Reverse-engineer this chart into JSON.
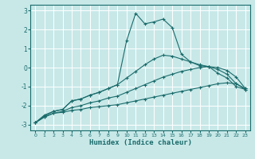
{
  "xlabel": "Humidex (Indice chaleur)",
  "bg_color": "#c8e8e8",
  "grid_color": "#b0d8d8",
  "line_color": "#1a6b6b",
  "xlim": [
    -0.5,
    23.5
  ],
  "ylim": [
    -3.3,
    3.3
  ],
  "yticks": [
    -3,
    -2,
    -1,
    0,
    1,
    2,
    3
  ],
  "xticks": [
    0,
    1,
    2,
    3,
    4,
    5,
    6,
    7,
    8,
    9,
    10,
    11,
    12,
    13,
    14,
    15,
    16,
    17,
    18,
    19,
    20,
    21,
    22,
    23
  ],
  "series": [
    {
      "x": [
        0,
        1,
        2,
        3,
        4,
        5,
        6,
        7,
        8,
        9,
        10,
        11,
        12,
        13,
        14,
        15,
        16,
        17,
        18,
        19,
        20,
        21,
        22,
        23
      ],
      "y": [
        -2.9,
        -2.6,
        -2.4,
        -2.35,
        -2.25,
        -2.2,
        -2.1,
        -2.05,
        -2.0,
        -1.95,
        -1.85,
        -1.75,
        -1.65,
        -1.55,
        -1.45,
        -1.35,
        -1.25,
        -1.15,
        -1.05,
        -0.95,
        -0.85,
        -0.8,
        -0.85,
        -1.15
      ],
      "marker": true
    },
    {
      "x": [
        0,
        1,
        2,
        3,
        4,
        5,
        6,
        7,
        8,
        9,
        10,
        11,
        12,
        13,
        14,
        15,
        16,
        17,
        18,
        19,
        20,
        21,
        22,
        23
      ],
      "y": [
        -2.9,
        -2.6,
        -2.4,
        -2.3,
        -2.1,
        -2.0,
        -1.85,
        -1.75,
        -1.6,
        -1.5,
        -1.3,
        -1.1,
        -0.9,
        -0.7,
        -0.5,
        -0.35,
        -0.2,
        -0.1,
        0.0,
        0.05,
        0.0,
        -0.15,
        -0.5,
        -1.1
      ],
      "marker": true
    },
    {
      "x": [
        0,
        1,
        2,
        3,
        4,
        5,
        6,
        7,
        8,
        9,
        10,
        11,
        12,
        13,
        14,
        15,
        16,
        17,
        18,
        19,
        20,
        21,
        22,
        23
      ],
      "y": [
        -2.9,
        -2.55,
        -2.3,
        -2.2,
        -1.75,
        -1.65,
        -1.45,
        -1.3,
        -1.1,
        -0.9,
        -0.55,
        -0.2,
        0.15,
        0.45,
        0.65,
        0.6,
        0.45,
        0.3,
        0.15,
        0.05,
        -0.1,
        -0.35,
        -0.85,
        -1.1
      ],
      "marker": true
    },
    {
      "x": [
        0,
        1,
        2,
        3,
        4,
        5,
        6,
        7,
        8,
        9,
        10,
        11,
        12,
        13,
        14,
        15,
        16,
        17,
        18,
        19,
        20,
        21,
        22,
        23
      ],
      "y": [
        -2.9,
        -2.5,
        -2.3,
        -2.2,
        -1.75,
        -1.65,
        -1.45,
        -1.3,
        -1.1,
        -0.9,
        1.4,
        2.85,
        2.3,
        2.4,
        2.55,
        2.1,
        0.7,
        0.3,
        0.1,
        0.05,
        -0.3,
        -0.55,
        -1.0,
        -1.15
      ],
      "marker": true
    }
  ]
}
